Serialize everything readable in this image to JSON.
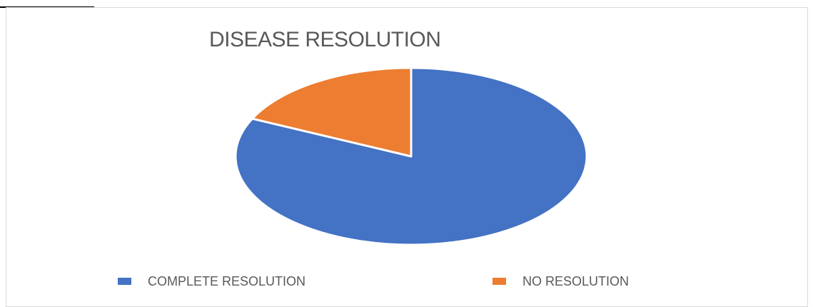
{
  "chart_data": {
    "type": "pie",
    "title": "DISEASE RESOLUTION",
    "categories": [
      "COMPLETE RESOLUTION",
      "NO RESOLUTION"
    ],
    "values": [
      82,
      18
    ],
    "colors": [
      "#4472c4",
      "#ed7d31"
    ],
    "legend": "bottom"
  }
}
